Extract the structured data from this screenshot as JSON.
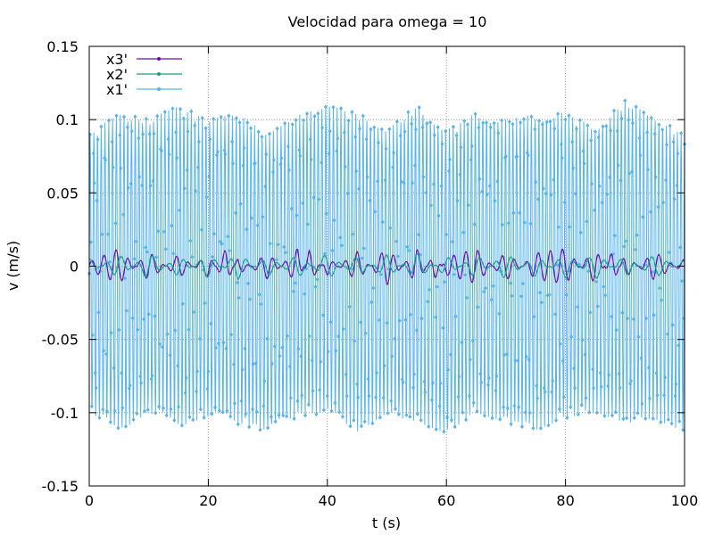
{
  "chart_data": {
    "type": "line",
    "title": "Velocidad para omega = 10",
    "xlabel": "t (s)",
    "ylabel": "v (m/s)",
    "xlim": [
      0,
      100
    ],
    "ylim": [
      -0.15,
      0.15
    ],
    "x_ticks": [
      0,
      20,
      40,
      60,
      80,
      100
    ],
    "x_tick_labels": [
      "0",
      "20",
      "40",
      "60",
      "80",
      "100"
    ],
    "y_ticks": [
      -0.15,
      -0.1,
      -0.05,
      0,
      0.05,
      0.1,
      0.15
    ],
    "y_tick_labels": [
      "-0.15",
      "-0.1",
      "-0.05",
      "0",
      "0.05",
      "0.1",
      "0.15"
    ],
    "grid": true,
    "legend_position": "top-left",
    "series": [
      {
        "name": "x3'",
        "color": "#6a0dad",
        "amplitude_range": [
          -0.015,
          0.015
        ],
        "t": [
          0,
          5,
          10,
          15,
          20,
          23,
          25,
          30,
          35,
          37,
          40,
          45,
          50,
          55,
          58,
          60,
          65,
          70,
          75,
          80,
          85,
          88,
          90,
          95,
          100
        ],
        "values": [
          0.003,
          0.012,
          -0.01,
          0.008,
          -0.008,
          0.012,
          -0.006,
          0.009,
          -0.012,
          0.011,
          -0.006,
          0.01,
          -0.013,
          0.012,
          -0.009,
          0.006,
          0.012,
          -0.01,
          0.009,
          0.012,
          -0.012,
          0.011,
          -0.008,
          0.01,
          -0.005
        ]
      },
      {
        "name": "x2'",
        "color": "#1a9e8a",
        "amplitude_range": [
          -0.01,
          0.01
        ],
        "t": [
          0,
          5,
          10,
          15,
          20,
          25,
          30,
          35,
          40,
          45,
          50,
          55,
          60,
          65,
          70,
          75,
          80,
          85,
          90,
          95,
          100
        ],
        "values": [
          0.005,
          -0.008,
          0.009,
          -0.007,
          0.008,
          -0.009,
          0.007,
          -0.008,
          0.009,
          -0.007,
          0.008,
          -0.009,
          0.007,
          -0.008,
          0.009,
          -0.007,
          0.008,
          -0.009,
          0.007,
          -0.008,
          0.004
        ]
      },
      {
        "name": "x1'",
        "color": "#56b4e9",
        "amplitude_range": [
          -0.115,
          0.113
        ],
        "envelope_t": [
          0,
          5,
          10,
          15,
          20,
          25,
          30,
          35,
          40,
          45,
          50,
          55,
          60,
          65,
          70,
          75,
          80,
          85,
          90,
          95,
          100
        ],
        "envelope_max": [
          0.09,
          0.105,
          0.1,
          0.11,
          0.1,
          0.104,
          0.09,
          0.103,
          0.11,
          0.105,
          0.093,
          0.11,
          0.093,
          0.105,
          0.1,
          0.104,
          0.105,
          0.095,
          0.113,
          0.102,
          0.09
        ],
        "envelope_min": [
          -0.1,
          -0.113,
          -0.1,
          -0.11,
          -0.103,
          -0.108,
          -0.113,
          -0.103,
          -0.1,
          -0.113,
          -0.102,
          -0.106,
          -0.115,
          -0.1,
          -0.107,
          -0.112,
          -0.104,
          -0.1,
          -0.107,
          -0.105,
          -0.113
        ]
      }
    ]
  }
}
